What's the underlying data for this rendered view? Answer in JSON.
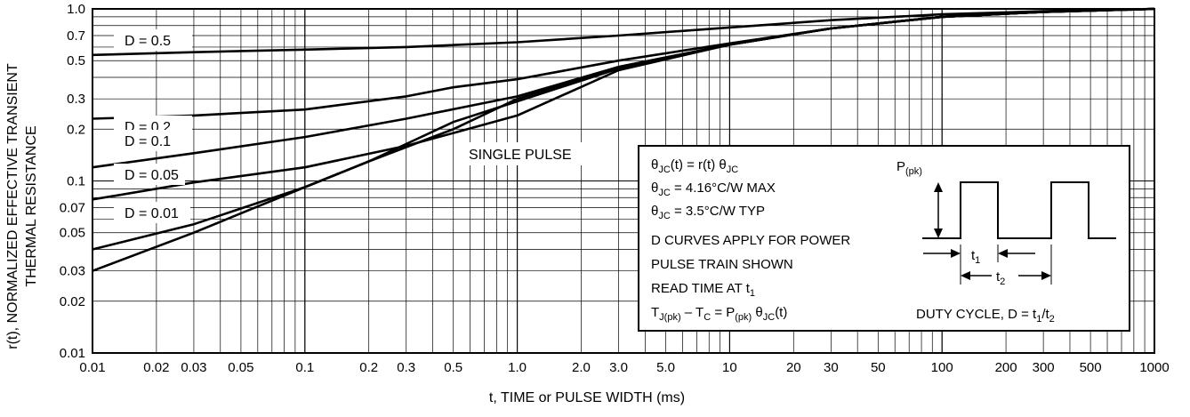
{
  "chart_data": {
    "type": "line",
    "title": "",
    "xlabel": "t, TIME or PULSE WIDTH (ms)",
    "ylabel_lines": [
      "r(t), NORMALIZED EFFECTIVE TRANSIENT",
      "THERMAL RESISTANCE"
    ],
    "x_scale": "log",
    "y_scale": "log",
    "xlim": [
      0.01,
      1000
    ],
    "ylim": [
      0.01,
      1.0
    ],
    "grid": true,
    "x_ticks": [
      {
        "v": 0.01,
        "t": "0.01"
      },
      {
        "v": 0.02,
        "t": "0.02"
      },
      {
        "v": 0.03,
        "t": "0.03"
      },
      {
        "v": 0.05,
        "t": "0.05"
      },
      {
        "v": 0.1,
        "t": "0.1"
      },
      {
        "v": 0.2,
        "t": "0.2"
      },
      {
        "v": 0.3,
        "t": "0.3"
      },
      {
        "v": 0.5,
        "t": "0.5"
      },
      {
        "v": 1,
        "t": "1.0"
      },
      {
        "v": 2,
        "t": "2.0"
      },
      {
        "v": 3,
        "t": "3.0"
      },
      {
        "v": 5,
        "t": "5.0"
      },
      {
        "v": 10,
        "t": "10"
      },
      {
        "v": 20,
        "t": "20"
      },
      {
        "v": 30,
        "t": "30"
      },
      {
        "v": 50,
        "t": "50"
      },
      {
        "v": 100,
        "t": "100"
      },
      {
        "v": 200,
        "t": "200"
      },
      {
        "v": 300,
        "t": "300"
      },
      {
        "v": 500,
        "t": "500"
      },
      {
        "v": 1000,
        "t": "1000"
      }
    ],
    "y_ticks": [
      {
        "v": 1.0,
        "t": "1.0"
      },
      {
        "v": 0.7,
        "t": "0.7"
      },
      {
        "v": 0.5,
        "t": "0.5"
      },
      {
        "v": 0.3,
        "t": "0.3"
      },
      {
        "v": 0.2,
        "t": "0.2"
      },
      {
        "v": 0.1,
        "t": "0.1"
      },
      {
        "v": 0.07,
        "t": "0.07"
      },
      {
        "v": 0.05,
        "t": "0.05"
      },
      {
        "v": 0.03,
        "t": "0.03"
      },
      {
        "v": 0.02,
        "t": "0.02"
      },
      {
        "v": 0.01,
        "t": "0.01"
      }
    ],
    "series": [
      {
        "name": "D = 0.5",
        "points": [
          [
            0.01,
            0.54
          ],
          [
            0.03,
            0.56
          ],
          [
            0.1,
            0.58
          ],
          [
            0.3,
            0.6
          ],
          [
            1,
            0.64
          ],
          [
            3,
            0.7
          ],
          [
            10,
            0.78
          ],
          [
            30,
            0.86
          ],
          [
            100,
            0.93
          ],
          [
            300,
            0.97
          ],
          [
            1000,
            1.0
          ]
        ]
      },
      {
        "name": "D = 0.2",
        "points": [
          [
            0.01,
            0.23
          ],
          [
            0.03,
            0.24
          ],
          [
            0.1,
            0.26
          ],
          [
            0.3,
            0.31
          ],
          [
            0.5,
            0.35
          ],
          [
            1,
            0.39
          ],
          [
            3,
            0.5
          ],
          [
            10,
            0.63
          ],
          [
            30,
            0.77
          ],
          [
            100,
            0.9
          ],
          [
            300,
            0.96
          ],
          [
            1000,
            1.0
          ]
        ]
      },
      {
        "name": "D = 0.1",
        "points": [
          [
            0.01,
            0.12
          ],
          [
            0.03,
            0.145
          ],
          [
            0.1,
            0.18
          ],
          [
            0.3,
            0.23
          ],
          [
            1,
            0.31
          ],
          [
            3,
            0.46
          ],
          [
            10,
            0.62
          ],
          [
            30,
            0.77
          ],
          [
            100,
            0.9
          ],
          [
            300,
            0.96
          ],
          [
            1000,
            1.0
          ]
        ]
      },
      {
        "name": "D = 0.05",
        "points": [
          [
            0.01,
            0.078
          ],
          [
            0.03,
            0.098
          ],
          [
            0.1,
            0.12
          ],
          [
            0.3,
            0.16
          ],
          [
            0.5,
            0.19
          ],
          [
            1,
            0.24
          ],
          [
            3,
            0.44
          ],
          [
            10,
            0.62
          ],
          [
            30,
            0.77
          ],
          [
            100,
            0.9
          ],
          [
            300,
            0.96
          ],
          [
            1000,
            1.0
          ]
        ]
      },
      {
        "name": "D = 0.01",
        "points": [
          [
            0.01,
            0.04
          ],
          [
            0.03,
            0.056
          ],
          [
            0.1,
            0.092
          ],
          [
            0.2,
            0.13
          ],
          [
            0.5,
            0.2
          ],
          [
            1,
            0.3
          ],
          [
            3,
            0.46
          ],
          [
            10,
            0.62
          ],
          [
            30,
            0.77
          ],
          [
            100,
            0.9
          ],
          [
            300,
            0.96
          ],
          [
            1000,
            1.0
          ]
        ]
      },
      {
        "name": "SINGLE PULSE",
        "points": [
          [
            0.01,
            0.03
          ],
          [
            0.03,
            0.05
          ],
          [
            0.1,
            0.092
          ],
          [
            0.2,
            0.13
          ],
          [
            0.5,
            0.22
          ],
          [
            1,
            0.29
          ],
          [
            3,
            0.45
          ],
          [
            10,
            0.62
          ],
          [
            30,
            0.77
          ],
          [
            100,
            0.9
          ],
          [
            300,
            0.96
          ],
          [
            1000,
            1.0
          ]
        ]
      }
    ],
    "annotations": {
      "single_pulse": "SINGLE PULSE",
      "box": {
        "eq1": {
          "base": "θ",
          "sub1": "JC",
          "rest": "(t) = r(t) θ",
          "sub2": "JC"
        },
        "eq2": {
          "base": "θ",
          "sub1": "JC",
          "rest": " = 4.16°C/W MAX"
        },
        "eq3": {
          "base": "θ",
          "sub1": "JC",
          "rest": " = 3.5°C/W TYP"
        },
        "line4": "D CURVES APPLY FOR POWER",
        "line5": "PULSE TRAIN SHOWN",
        "line6": {
          "base": "READ TIME AT t",
          "sub1": "1"
        },
        "line7": {
          "t1": "T",
          "s1": "J(pk)",
          "t2": " – T",
          "s2": "C",
          "t3": " = P",
          "s3": "(pk)",
          "t4": " θ",
          "s4": "JC",
          "t5": "(t)"
        },
        "ppk": {
          "base": "P",
          "sub": "(pk)"
        },
        "t1": {
          "base": "t",
          "sub": "1"
        },
        "t2": {
          "base": "t",
          "sub": "2"
        },
        "duty": {
          "base": "DUTY CYCLE, D = t",
          "s1": "1",
          "mid": "/t",
          "s2": "2"
        }
      }
    }
  }
}
